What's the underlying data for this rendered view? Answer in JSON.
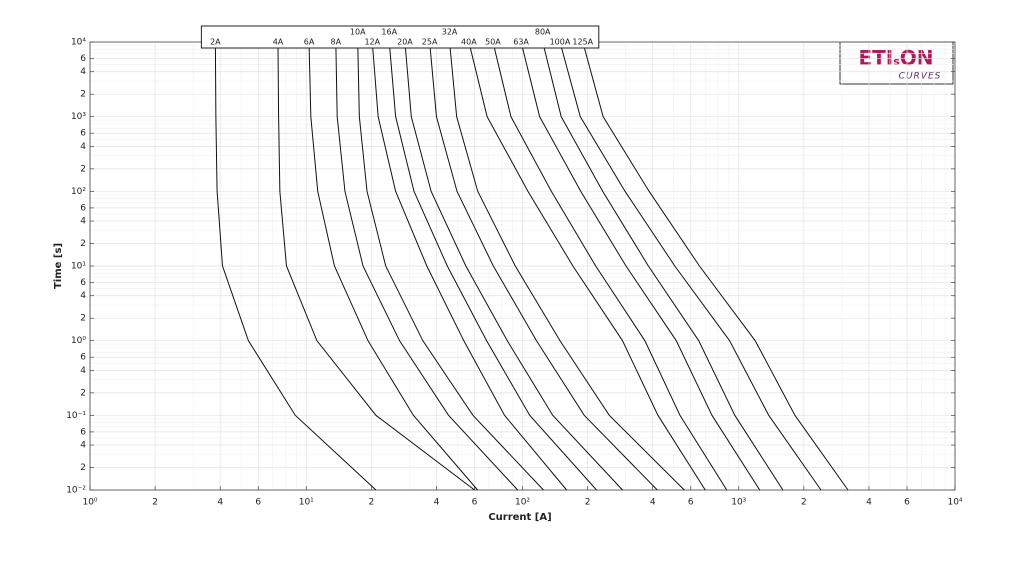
{
  "chart_data": {
    "type": "line",
    "x_label": "Current [A]",
    "y_label": "Time [s]",
    "log_x": true,
    "log_y": true,
    "grid": true,
    "color": "#111111",
    "xlim": [
      1,
      10000
    ],
    "ylim": [
      0.01,
      10000
    ],
    "xticks": [
      {
        "value": 1,
        "label": "10⁰"
      },
      2,
      4,
      6,
      {
        "value": 10,
        "label": "10¹"
      },
      {
        "value": 20,
        "label": "2"
      },
      {
        "value": 40,
        "label": "4"
      },
      {
        "value": 60,
        "label": "6"
      },
      {
        "value": 100,
        "label": "10²"
      },
      {
        "value": 200,
        "label": "2"
      },
      {
        "value": 400,
        "label": "4"
      },
      {
        "value": 600,
        "label": "6"
      },
      {
        "value": 1000,
        "label": "10³"
      },
      {
        "value": 2000,
        "label": "2"
      },
      {
        "value": 4000,
        "label": "4"
      },
      {
        "value": 6000,
        "label": "6"
      },
      {
        "value": 10000,
        "label": "10⁴"
      }
    ],
    "yticks": [
      {
        "value": 0.01,
        "label": "10⁻²"
      },
      {
        "value": 0.02,
        "label": "2"
      },
      {
        "value": 0.04,
        "label": "4"
      },
      {
        "value": 0.06,
        "label": "6"
      },
      {
        "value": 0.1,
        "label": "10⁻¹"
      },
      {
        "value": 0.2,
        "label": "2"
      },
      {
        "value": 0.4,
        "label": "4"
      },
      {
        "value": 0.6,
        "label": "6"
      },
      {
        "value": 1,
        "label": "10⁰"
      },
      2,
      4,
      6,
      {
        "value": 10,
        "label": "10¹"
      },
      {
        "value": 20,
        "label": "2"
      },
      {
        "value": 40,
        "label": "4"
      },
      {
        "value": 60,
        "label": "6"
      },
      {
        "value": 100,
        "label": "10²"
      },
      {
        "value": 200,
        "label": "2"
      },
      {
        "value": 400,
        "label": "4"
      },
      {
        "value": 600,
        "label": "6"
      },
      {
        "value": 1000,
        "label": "10³"
      },
      {
        "value": 2000,
        "label": "2"
      },
      {
        "value": 4000,
        "label": "4"
      },
      {
        "value": 6000,
        "label": "6"
      },
      {
        "value": 10000,
        "label": "10⁴"
      }
    ],
    "xminor": [
      3,
      5,
      7,
      8,
      9,
      30,
      50,
      70,
      80,
      90,
      300,
      500,
      700,
      800,
      900,
      3000,
      5000,
      7000,
      8000,
      9000
    ],
    "yminor": [
      0.03,
      0.05,
      0.07,
      0.08,
      0.09,
      0.3,
      0.5,
      0.7,
      0.8,
      0.9,
      3,
      5,
      7,
      8,
      9,
      30,
      50,
      70,
      80,
      90,
      300,
      500,
      700,
      800,
      900,
      3000,
      5000,
      7000,
      8000,
      9000
    ],
    "series": [
      {
        "name": "2A",
        "x": [
          3.8,
          3.82,
          3.87,
          4.1,
          5.4,
          8.9,
          21
        ],
        "values": [
          10000,
          1000,
          100,
          10,
          1,
          0.1,
          0.01
        ]
      },
      {
        "name": "4A",
        "x": [
          7.4,
          7.45,
          7.55,
          8.1,
          11.2,
          21,
          60
        ],
        "values": [
          10000,
          1000,
          100,
          10,
          1,
          0.1,
          0.01
        ]
      },
      {
        "name": "6A",
        "x": [
          10.3,
          10.5,
          11.3,
          13.5,
          19.3,
          31.3,
          62
        ],
        "values": [
          10000,
          1000,
          100,
          10,
          1,
          0.1,
          0.01
        ]
      },
      {
        "name": "8A",
        "x": [
          13.7,
          13.9,
          15.1,
          18.3,
          27,
          45.5,
          95
        ],
        "values": [
          10000,
          1000,
          100,
          10,
          1,
          0.1,
          0.01
        ]
      },
      {
        "name": "10A",
        "x": [
          17.3,
          17.6,
          19.1,
          23.3,
          34.6,
          59,
          125
        ],
        "values": [
          10000,
          1000,
          100,
          10,
          1,
          0.1,
          0.01
        ]
      },
      {
        "name": "12A",
        "x": [
          20.2,
          21.5,
          25.9,
          36.1,
          53.5,
          82.6,
          160
        ],
        "values": [
          10000,
          1000,
          100,
          10,
          1,
          0.1,
          0.01
        ]
      },
      {
        "name": "16A",
        "x": [
          24.2,
          25.9,
          31.5,
          44.9,
          68.2,
          108,
          220
        ],
        "values": [
          10000,
          1000,
          100,
          10,
          1,
          0.1,
          0.01
        ]
      },
      {
        "name": "20A",
        "x": [
          28.6,
          30.6,
          37.8,
          54.7,
          85,
          138,
          290
        ],
        "values": [
          10000,
          1000,
          100,
          10,
          1,
          0.1,
          0.01
        ]
      },
      {
        "name": "25A",
        "x": [
          37.2,
          40,
          49.8,
          73.3,
          116,
          193,
          420
        ],
        "values": [
          10000,
          1000,
          100,
          10,
          1,
          0.1,
          0.01
        ]
      },
      {
        "name": "32A",
        "x": [
          46,
          49.6,
          62.1,
          92.6,
          149,
          252,
          560
        ],
        "values": [
          10000,
          1000,
          100,
          10,
          1,
          0.1,
          0.01
        ]
      },
      {
        "name": "40A",
        "x": [
          56.5,
          68.6,
          106,
          171,
          290,
          423,
          700
        ],
        "values": [
          10000,
          1000,
          100,
          10,
          1,
          0.1,
          0.01
        ]
      },
      {
        "name": "50A",
        "x": [
          73,
          88.4,
          136,
          218,
          368,
          535,
          880
        ],
        "values": [
          10000,
          1000,
          100,
          10,
          1,
          0.1,
          0.01
        ]
      },
      {
        "name": "63A",
        "x": [
          98.5,
          120,
          186,
          301,
          514,
          752,
          1250
        ],
        "values": [
          10000,
          1000,
          100,
          10,
          1,
          0.1,
          0.01
        ]
      },
      {
        "name": "80A",
        "x": [
          124,
          151,
          235,
          382,
          653,
          959,
          1600
        ],
        "values": [
          10000,
          1000,
          100,
          10,
          1,
          0.1,
          0.01
        ]
      },
      {
        "name": "100A",
        "x": [
          149,
          185,
          298,
          506,
          907,
          1376,
          2400
        ],
        "values": [
          10000,
          1000,
          100,
          10,
          1,
          0.1,
          0.01
        ]
      },
      {
        "name": "125A",
        "x": [
          190,
          236,
          385,
          658,
          1191,
          1819,
          3200
        ],
        "values": [
          10000,
          1000,
          100,
          10,
          1,
          0.1,
          0.01
        ]
      }
    ]
  },
  "logo": {
    "parts": [
      "ETI",
      "s",
      "ON"
    ],
    "subtitle": "CURVES"
  }
}
